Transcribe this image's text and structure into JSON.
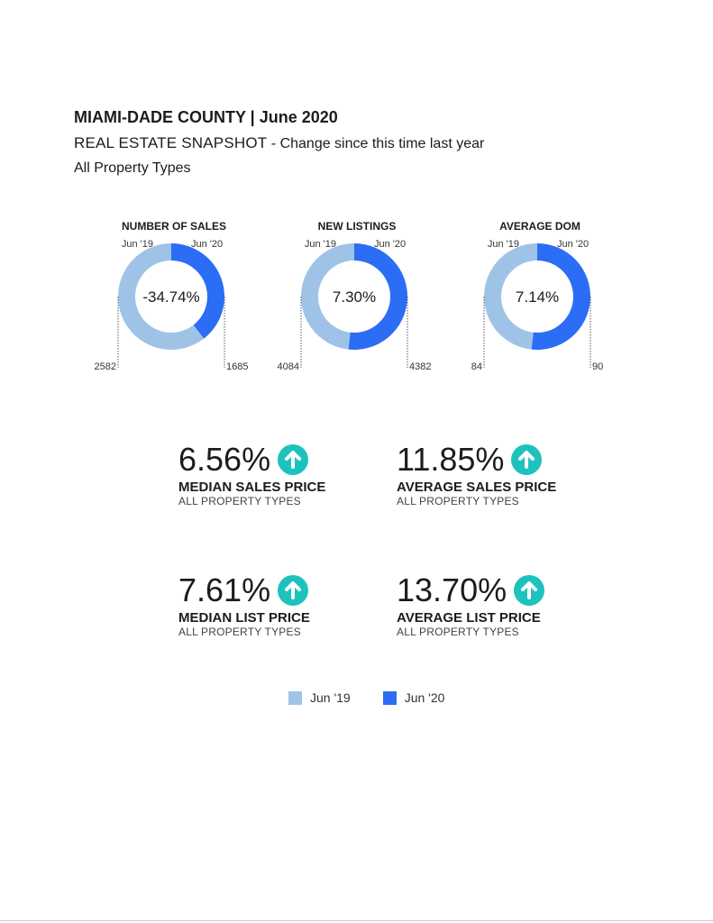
{
  "header": {
    "title": "MIAMI-DADE COUNTY | June 2020",
    "subtitle_main": "REAL ESTATE SNAPSHOT",
    "subtitle_tail": " - Change since this time last year",
    "property_types": "All Property Types"
  },
  "colors": {
    "jun19": "#9fc3e6",
    "jun20": "#2b6df5",
    "up_icon": "#1ec2bd"
  },
  "chart_data": [
    {
      "type": "pie",
      "title": "NUMBER OF SALES",
      "categories": [
        "Jun '19",
        "Jun '20"
      ],
      "values": [
        2582,
        1685
      ],
      "center_label": "-34.74%"
    },
    {
      "type": "pie",
      "title": "NEW LISTINGS",
      "categories": [
        "Jun '19",
        "Jun '20"
      ],
      "values": [
        4084,
        4382
      ],
      "center_label": "7.30%"
    },
    {
      "type": "pie",
      "title": "AVERAGE DOM",
      "categories": [
        "Jun '19",
        "Jun '20"
      ],
      "values": [
        84,
        90
      ],
      "center_label": "7.14%"
    }
  ],
  "kpis": [
    {
      "value": "6.56%",
      "label": "MEDIAN SALES PRICE",
      "sub": "ALL PROPERTY TYPES",
      "icon": "arrow-up-circle-icon"
    },
    {
      "value": "11.85%",
      "label": "AVERAGE SALES PRICE",
      "sub": "ALL PROPERTY TYPES",
      "icon": "arrow-up-circle-icon"
    },
    {
      "value": "7.61%",
      "label": "MEDIAN LIST PRICE",
      "sub": "ALL PROPERTY TYPES",
      "icon": "arrow-up-circle-icon"
    },
    {
      "value": "13.70%",
      "label": "AVERAGE LIST PRICE",
      "sub": "ALL PROPERTY TYPES",
      "icon": "arrow-up-circle-icon"
    }
  ],
  "legend": {
    "jun19": "Jun '19",
    "jun20": "Jun '20"
  }
}
